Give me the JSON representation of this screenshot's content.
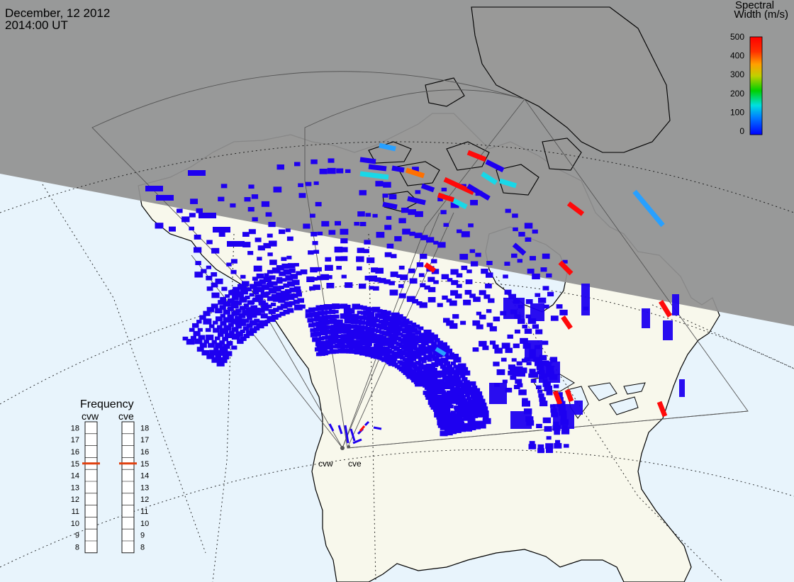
{
  "title": {
    "date": "December, 12 2012",
    "time": "2014:00 UT"
  },
  "colorbar": {
    "title_line1": "Spectral",
    "title_line2": "Width (m/s)",
    "ticks": [
      "500",
      "400",
      "300",
      "200",
      "100",
      "0"
    ],
    "scale_colors": [
      "#0000ff",
      "#0080ff",
      "#00e0e0",
      "#00d000",
      "#c0d000",
      "#ffa000",
      "#ff3000",
      "#ff0000"
    ]
  },
  "frequency_panel": {
    "title": "Frequency",
    "columns": [
      {
        "label": "cvw",
        "selected": "15"
      },
      {
        "label": "cve",
        "selected": "15"
      }
    ],
    "ticks": [
      "18",
      "17",
      "16",
      "15",
      "14",
      "13",
      "12",
      "11",
      "10",
      "9",
      "8"
    ],
    "marker_color": "#e04010"
  },
  "radars": [
    {
      "label": "cvw"
    },
    {
      "label": "cve"
    }
  ],
  "colors": {
    "ocean": "#e8f4fc",
    "land": "#f8f8ec",
    "night": "#919191",
    "low_width": "#1e00f0",
    "mid_width": "#28a0ff",
    "cyan_width": "#18d8e8",
    "orange_width": "#ff7000",
    "high_width": "#ff0a0a"
  }
}
